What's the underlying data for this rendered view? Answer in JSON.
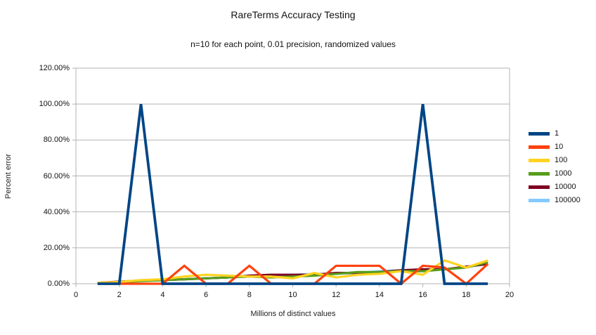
{
  "chart_data": {
    "type": "line",
    "title": "RareTerms Accuracy Testing",
    "subtitle": "n=10 for each point, 0.01 precision, randomized values",
    "xlabel": "Millions of distinct values",
    "ylabel": "Percent error",
    "xlim": [
      0,
      20
    ],
    "ylim": [
      0,
      120
    ],
    "grid": "horizontal",
    "legend_position": "right",
    "x_ticks": [
      {
        "value": 0,
        "label": "0"
      },
      {
        "value": 2,
        "label": "2"
      },
      {
        "value": 4,
        "label": "4"
      },
      {
        "value": 6,
        "label": "6"
      },
      {
        "value": 8,
        "label": "8"
      },
      {
        "value": 10,
        "label": "10"
      },
      {
        "value": 12,
        "label": "12"
      },
      {
        "value": 14,
        "label": "14"
      },
      {
        "value": 16,
        "label": "16"
      },
      {
        "value": 18,
        "label": "18"
      },
      {
        "value": 20,
        "label": "20"
      }
    ],
    "y_ticks": [
      {
        "value": 0,
        "label": "0.00%"
      },
      {
        "value": 20,
        "label": "20.00%"
      },
      {
        "value": 40,
        "label": "40.00%"
      },
      {
        "value": 60,
        "label": "60.00%"
      },
      {
        "value": 80,
        "label": "80.00%"
      },
      {
        "value": 100,
        "label": "100.00%"
      },
      {
        "value": 120,
        "label": "120.00%"
      }
    ],
    "x": [
      1,
      2,
      3,
      4,
      5,
      6,
      7,
      8,
      9,
      10,
      11,
      12,
      13,
      14,
      15,
      16,
      17,
      18,
      19
    ],
    "series": [
      {
        "name": "1",
        "color": "#004586",
        "width": 3.8,
        "values": [
          0,
          0,
          100,
          0,
          0,
          0,
          0,
          0,
          0,
          0,
          0,
          0,
          0,
          0,
          0,
          100,
          0,
          0,
          0
        ]
      },
      {
        "name": "10",
        "color": "#FF420E",
        "width": 3.2,
        "values": [
          0,
          0,
          0,
          0,
          10,
          0,
          0,
          10,
          0,
          0,
          0,
          10,
          10,
          10,
          0,
          10,
          9,
          0,
          11
        ]
      },
      {
        "name": "100",
        "color": "#FFD320",
        "width": 3.2,
        "values": [
          0.5,
          1,
          2,
          2.5,
          4,
          5,
          4.5,
          4,
          4,
          3,
          6,
          3.5,
          5,
          5.5,
          7,
          5,
          13,
          9,
          13
        ]
      },
      {
        "name": "1000",
        "color": "#579D1C",
        "width": 3.2,
        "values": [
          0.3,
          0.8,
          1.5,
          2,
          2.5,
          3,
          3.5,
          4,
          3.5,
          4,
          4.5,
          5.5,
          6.5,
          6.5,
          7,
          7,
          8,
          9,
          12
        ]
      },
      {
        "name": "10000",
        "color": "#7E0021",
        "width": 3.2,
        "values": [
          0.5,
          1.2,
          1.7,
          2,
          2.5,
          3,
          3.5,
          4.5,
          5,
          5,
          5,
          6,
          6,
          6.5,
          7.5,
          8,
          8,
          9.5,
          11
        ]
      },
      {
        "name": "100000",
        "color": "#83CAFF",
        "width": 3.2,
        "values": [
          0.4,
          1,
          1.8,
          2.2,
          2.5,
          3,
          3.5,
          4,
          4.5,
          5,
          5.5,
          5.5,
          6,
          7,
          7.5,
          8,
          8,
          9,
          11.5
        ]
      }
    ],
    "grid_color": "#B3B3B3",
    "axis_color": "#B3B3B3",
    "text_color": "#111111",
    "background_color": "#FFFFFF"
  }
}
